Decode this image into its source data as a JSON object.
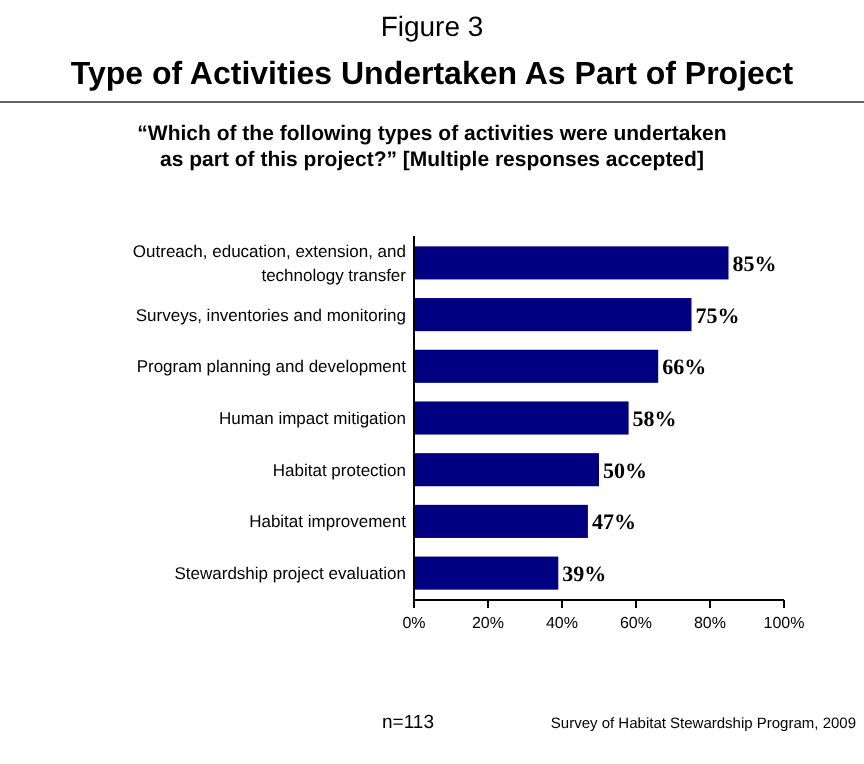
{
  "chart_data": {
    "type": "bar",
    "orientation": "horizontal",
    "title": "Type of Activities Undertaken As Part of Project",
    "subtitle": "“Which of the following types of activities were undertaken as part of this project?” [Multiple responses accepted]",
    "annotations": [
      "Figure 3",
      "n=113",
      "Survey of Habitat Stewardship Program, 2009"
    ],
    "categories": [
      "Outreach, education, extension, and technology transfer",
      "Surveys, inventories and monitoring",
      "Program planning and development",
      "Human impact mitigation",
      "Habitat protection",
      "Habitat improvement",
      "Stewardship project evaluation"
    ],
    "values": [
      85,
      75,
      66,
      58,
      50,
      47,
      39
    ],
    "value_labels": [
      "85%",
      "75%",
      "66%",
      "58%",
      "50%",
      "47%",
      "39%"
    ],
    "color": "#000080",
    "xlim": [
      0,
      100
    ],
    "xticks": [
      {
        "value": 0,
        "label": "0%"
      },
      {
        "value": 20,
        "label": "20%"
      },
      {
        "value": 40,
        "label": "40%"
      },
      {
        "value": 60,
        "label": "60%"
      },
      {
        "value": 80,
        "label": "80%"
      },
      {
        "value": 100,
        "label": "100%"
      }
    ],
    "grid": false
  }
}
